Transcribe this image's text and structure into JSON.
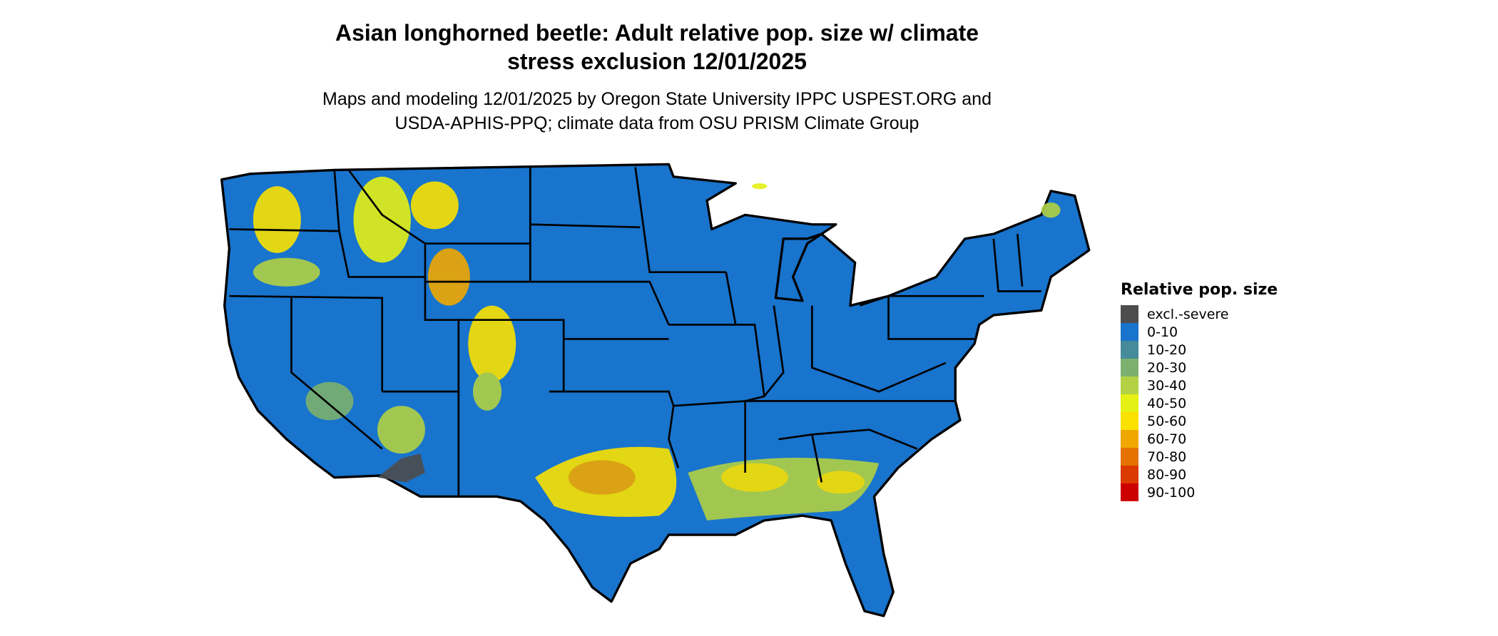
{
  "title_lines": [
    "Asian longhorned beetle: Adult relative pop. size w/ climate",
    "stress exclusion 12/01/2025"
  ],
  "subtitle_lines": [
    "Maps and modeling 12/01/2025 by Oregon State University IPPC USPEST.ORG and",
    "USDA-APHIS-PPQ; climate data from OSU PRISM Climate Group"
  ],
  "legend": {
    "title": "Relative pop. size",
    "items": [
      {
        "label": "excl.-severe",
        "color": "#4d4d4d"
      },
      {
        "label": "0-10",
        "color": "#1874cd"
      },
      {
        "label": "10-20",
        "color": "#458b9a"
      },
      {
        "label": "20-30",
        "color": "#7cb06e"
      },
      {
        "label": "30-40",
        "color": "#b2d144"
      },
      {
        "label": "40-50",
        "color": "#e5f014"
      },
      {
        "label": "50-60",
        "color": "#fae100"
      },
      {
        "label": "60-70",
        "color": "#f0a800"
      },
      {
        "label": "70-80",
        "color": "#e57200"
      },
      {
        "label": "80-90",
        "color": "#db3a00"
      },
      {
        "label": "90-100",
        "color": "#cd0000"
      }
    ]
  },
  "map": {
    "region": "Conterminous United States",
    "base_color": "#1874cd",
    "border_color": "#000000"
  }
}
